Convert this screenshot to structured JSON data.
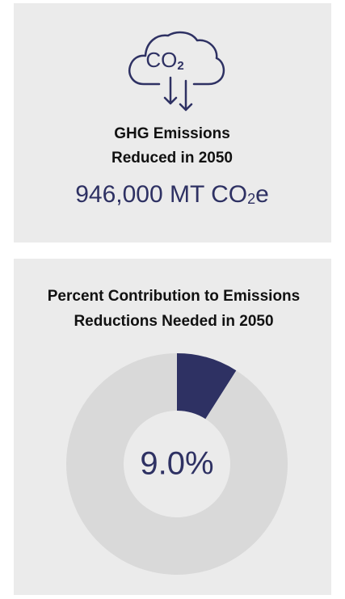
{
  "kpi": {
    "icon_text": "CO",
    "icon_sub": "2",
    "title_lines": [
      "GHG Emissions",
      "Reduced in 2050"
    ],
    "value": "946,000 MT CO",
    "value_sub": "2",
    "value_end": "e"
  },
  "chart_data": {
    "type": "donut",
    "title_lines": [
      "Percent Contribution to Emissions",
      "Reductions Needed in 2050"
    ],
    "values": [
      9.0,
      91.0
    ],
    "value_labels": [
      "9.0%",
      null
    ],
    "colors": [
      "#2e3163",
      "#d9d9d9"
    ]
  }
}
